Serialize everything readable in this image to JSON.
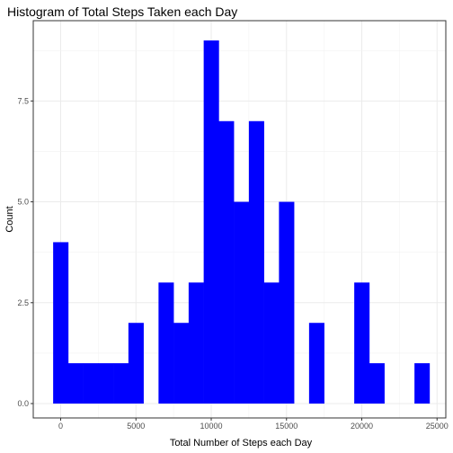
{
  "chart_data": {
    "type": "bar",
    "title": "Histogram of Total Steps Taken each Day",
    "xlabel": "Total Number of Steps each Day",
    "ylabel": "Count",
    "bin_width": 1000,
    "bin_centers": [
      0,
      1000,
      2000,
      3000,
      4000,
      5000,
      6000,
      7000,
      8000,
      9000,
      10000,
      11000,
      12000,
      13000,
      14000,
      15000,
      16000,
      17000,
      18000,
      19000,
      20000,
      21000,
      22000,
      23000,
      24000
    ],
    "values": [
      4,
      1,
      1,
      1,
      1,
      2,
      0,
      3,
      2,
      3,
      9,
      7,
      5,
      7,
      3,
      5,
      0,
      2,
      0,
      0,
      3,
      1,
      0,
      0,
      1
    ],
    "xlim": [
      -500,
      24500
    ],
    "ylim": [
      0,
      9
    ],
    "x_ticks": [
      0,
      5000,
      10000,
      15000,
      20000,
      25000
    ],
    "x_tick_labels": [
      "0",
      "5000",
      "10000",
      "15000",
      "20000",
      "25000"
    ],
    "y_ticks": [
      0,
      2.5,
      5.0,
      7.5
    ],
    "y_tick_labels": [
      "0.0",
      "2.5",
      "5.0",
      "7.5"
    ],
    "bar_color": "#0000ff",
    "grid": true,
    "panel_border": true
  }
}
